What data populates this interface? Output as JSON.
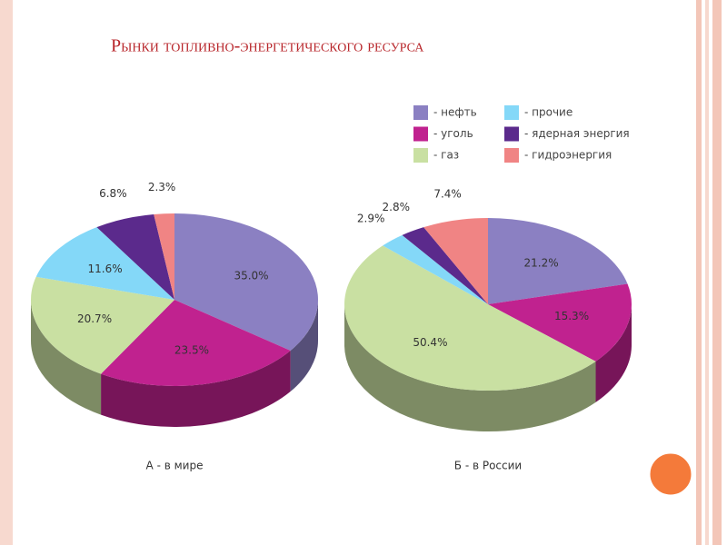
{
  "title": "Рынки топливно-энергетического ресурса",
  "chart_data": [
    {
      "type": "pie",
      "title": "А - в мире",
      "categories": [
        "- нефть",
        "- уголь",
        "- газ",
        "- прочие",
        "- ядерная энергия",
        "- гидроэнергия"
      ],
      "values": [
        35.0,
        23.5,
        20.7,
        11.6,
        6.8,
        2.3
      ],
      "value_labels": [
        "35.0%",
        "23.5%",
        "20.7%",
        "11.6%",
        "6.8%",
        "2.3%"
      ],
      "colors": [
        "#8b80c2",
        "#c0228f",
        "#c9e0a2",
        "#84d8f8",
        "#5b2a8c",
        "#f08484"
      ]
    },
    {
      "type": "pie",
      "title": "Б - в России",
      "categories": [
        "- нефть",
        "- уголь",
        "- газ",
        "- прочие",
        "- ядерная энергия",
        "- гидроэнергия"
      ],
      "values": [
        21.2,
        15.3,
        50.4,
        2.9,
        2.8,
        7.4
      ],
      "value_labels": [
        "21.2%",
        "15.3%",
        "50.4%",
        "2.9%",
        "2.8%",
        "7.4%"
      ],
      "colors": [
        "#8b80c2",
        "#c0228f",
        "#c9e0a2",
        "#84d8f8",
        "#5b2a8c",
        "#f08484"
      ]
    }
  ]
}
